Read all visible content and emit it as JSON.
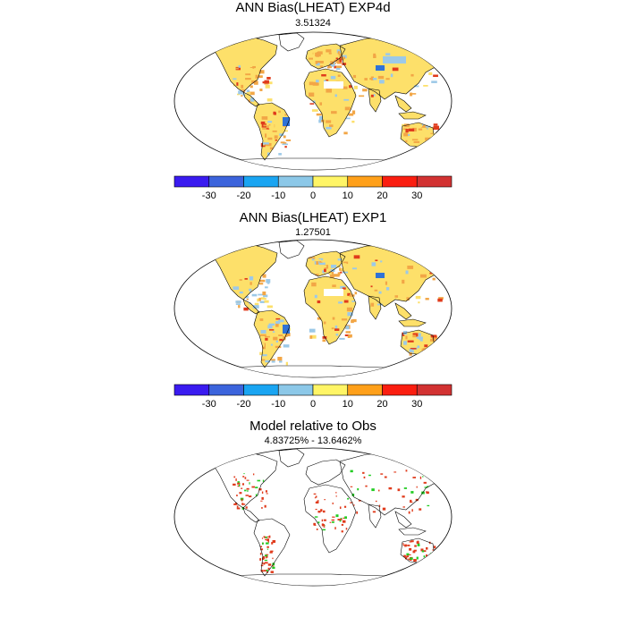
{
  "panels": [
    {
      "title": "ANN Bias(LHEAT) EXP4d",
      "value": "3.51324"
    },
    {
      "title": "ANN Bias(LHEAT) EXP1",
      "value": "1.27501"
    },
    {
      "title": "Model relative to Obs",
      "value": "4.83725% - 13.6462%"
    }
  ],
  "colorbar": {
    "colors": [
      "#3a1bf0",
      "#3c64dc",
      "#1aa5f2",
      "#8cc8e8",
      "#fff566",
      "#ffa01a",
      "#fa1e10",
      "#d23232"
    ],
    "labels": [
      "-30",
      "-20",
      "-10",
      "0",
      "10",
      "20",
      "30"
    ]
  },
  "palette": {
    "yellow": "#fde06a",
    "orange": "#f2a646",
    "red": "#e03b1c",
    "lightblue": "#9cc9e8",
    "blue": "#2f72d6",
    "green": "#22cc22",
    "white": "#ffffff"
  }
}
